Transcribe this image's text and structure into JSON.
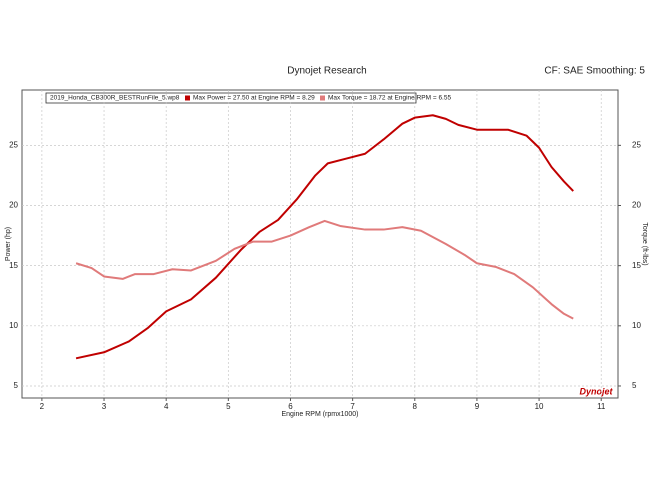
{
  "chart_data": {
    "type": "line",
    "title": "Dynojet Research",
    "subtitle": "CF: SAE Smoothing: 5",
    "legend_title": "2019_Honda_CB300R_BESTRunFile_5.wp8",
    "logo": "Dynojet",
    "x_label": "Engine RPM (rpmx1000)",
    "y_label": "Power (hp)",
    "y2_label": "Torque (ft-lbs)",
    "xlim": [
      1.68,
      11.27
    ],
    "xticks": [
      2,
      3,
      4,
      5,
      6,
      7,
      8,
      9,
      10,
      11
    ],
    "ylim": [
      4,
      29.6
    ],
    "yticks": [
      5,
      10,
      15,
      20,
      25
    ],
    "y2lim": [
      4,
      29.6
    ],
    "y2ticks": [
      5,
      10,
      15,
      20,
      25
    ],
    "grid": true,
    "legend": "top-left",
    "series": [
      {
        "name": "Max Power = 27.50 at Engine RPM = 8.29",
        "color": "#c00000",
        "x": [
          2.55,
          3.0,
          3.4,
          3.7,
          4.0,
          4.4,
          4.8,
          5.2,
          5.5,
          5.8,
          6.1,
          6.4,
          6.6,
          6.9,
          7.2,
          7.5,
          7.8,
          8.0,
          8.29,
          8.5,
          8.7,
          9.0,
          9.2,
          9.5,
          9.8,
          10.0,
          10.2,
          10.4,
          10.55
        ],
        "values": [
          7.3,
          7.8,
          8.7,
          9.8,
          11.2,
          12.2,
          14.0,
          16.3,
          17.8,
          18.8,
          20.5,
          22.5,
          23.5,
          23.9,
          24.3,
          25.5,
          26.8,
          27.3,
          27.5,
          27.2,
          26.7,
          26.3,
          26.3,
          26.3,
          25.8,
          24.8,
          23.2,
          22.0,
          21.2
        ]
      },
      {
        "name": "Max Torque = 18.72 at Engine RPM = 6.55",
        "color": "#e07a7a",
        "axis": "y2",
        "x": [
          2.55,
          2.8,
          3.0,
          3.3,
          3.5,
          3.8,
          4.1,
          4.4,
          4.8,
          5.1,
          5.4,
          5.7,
          6.0,
          6.3,
          6.55,
          6.8,
          7.2,
          7.5,
          7.8,
          8.1,
          8.5,
          8.8,
          9.0,
          9.3,
          9.6,
          9.9,
          10.2,
          10.4,
          10.55
        ],
        "values": [
          15.2,
          14.8,
          14.1,
          13.9,
          14.3,
          14.3,
          14.7,
          14.6,
          15.4,
          16.4,
          17.0,
          17.0,
          17.5,
          18.2,
          18.72,
          18.3,
          18.0,
          18.0,
          18.2,
          17.9,
          16.8,
          15.9,
          15.2,
          14.9,
          14.3,
          13.2,
          11.8,
          11.0,
          10.6
        ]
      }
    ]
  }
}
